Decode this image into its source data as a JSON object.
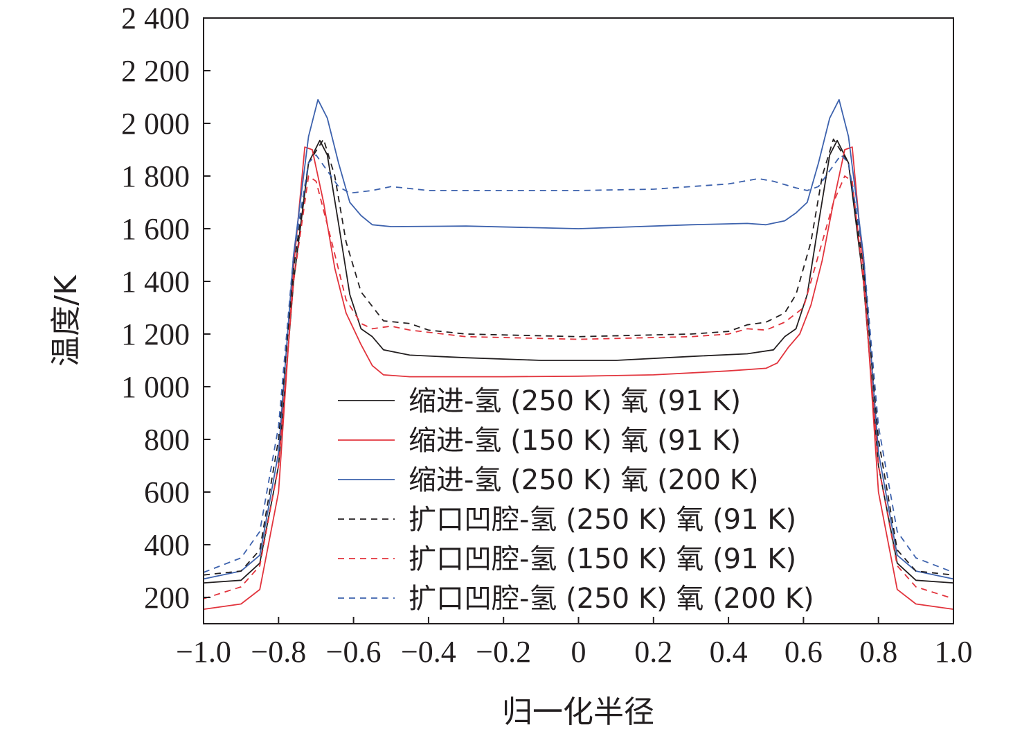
{
  "chart_data": {
    "type": "line",
    "xlabel": "归一化半径",
    "ylabel": "温度/K",
    "xlim": [
      -1.0,
      1.0
    ],
    "ylim": [
      100,
      2400
    ],
    "xticks": [
      -1.0,
      -0.8,
      -0.6,
      -0.4,
      -0.2,
      0,
      0.2,
      0.4,
      0.6,
      0.8,
      1.0
    ],
    "xtick_labels": [
      "−1.0",
      "−0.8",
      "−0.6",
      "−0.4",
      "−0.2",
      "0",
      "0.2",
      "0.4",
      "0.6",
      "0.8",
      "1.0"
    ],
    "yticks": [
      200,
      400,
      600,
      800,
      1000,
      1200,
      1400,
      1600,
      1800,
      2000,
      2200,
      2400
    ],
    "ytick_labels": [
      "200",
      "400",
      "600",
      "800",
      "1 000",
      "1 200",
      "1 400",
      "1 600",
      "1 800",
      "2 000",
      "2 200",
      "2 400"
    ],
    "grid": false,
    "legend_position": "lower-center",
    "series": [
      {
        "name": "缩进-氢 (250 K) 氧 (91 K)",
        "color": "#231f20",
        "dash": "solid",
        "points": [
          [
            -1.0,
            255
          ],
          [
            -0.9,
            265
          ],
          [
            -0.85,
            330
          ],
          [
            -0.8,
            700
          ],
          [
            -0.76,
            1400
          ],
          [
            -0.72,
            1850
          ],
          [
            -0.69,
            1935
          ],
          [
            -0.67,
            1880
          ],
          [
            -0.64,
            1620
          ],
          [
            -0.61,
            1350
          ],
          [
            -0.58,
            1220
          ],
          [
            -0.55,
            1190
          ],
          [
            -0.52,
            1140
          ],
          [
            -0.45,
            1120
          ],
          [
            -0.3,
            1110
          ],
          [
            -0.1,
            1100
          ],
          [
            0.1,
            1100
          ],
          [
            0.3,
            1115
          ],
          [
            0.45,
            1125
          ],
          [
            0.52,
            1140
          ],
          [
            0.55,
            1190
          ],
          [
            0.58,
            1220
          ],
          [
            0.61,
            1350
          ],
          [
            0.64,
            1620
          ],
          [
            0.67,
            1880
          ],
          [
            0.69,
            1935
          ],
          [
            0.72,
            1850
          ],
          [
            0.76,
            1400
          ],
          [
            0.8,
            700
          ],
          [
            0.85,
            330
          ],
          [
            0.9,
            265
          ],
          [
            1.0,
            255
          ]
        ]
      },
      {
        "name": "缩进-氢 (150 K) 氧 (91 K)",
        "color": "#e2343d",
        "dash": "solid",
        "points": [
          [
            -1.0,
            155
          ],
          [
            -0.9,
            175
          ],
          [
            -0.85,
            230
          ],
          [
            -0.8,
            600
          ],
          [
            -0.76,
            1450
          ],
          [
            -0.73,
            1910
          ],
          [
            -0.71,
            1900
          ],
          [
            -0.68,
            1700
          ],
          [
            -0.65,
            1450
          ],
          [
            -0.62,
            1280
          ],
          [
            -0.58,
            1160
          ],
          [
            -0.55,
            1080
          ],
          [
            -0.52,
            1045
          ],
          [
            -0.45,
            1038
          ],
          [
            -0.2,
            1038
          ],
          [
            0,
            1040
          ],
          [
            0.2,
            1045
          ],
          [
            0.4,
            1060
          ],
          [
            0.5,
            1070
          ],
          [
            0.53,
            1090
          ],
          [
            0.56,
            1150
          ],
          [
            0.59,
            1200
          ],
          [
            0.62,
            1310
          ],
          [
            0.65,
            1480
          ],
          [
            0.68,
            1700
          ],
          [
            0.71,
            1900
          ],
          [
            0.73,
            1910
          ],
          [
            0.76,
            1450
          ],
          [
            0.8,
            600
          ],
          [
            0.85,
            230
          ],
          [
            0.9,
            175
          ],
          [
            1.0,
            155
          ]
        ]
      },
      {
        "name": "缩进-氢 (250 K) 氧 (200 K)",
        "color": "#3d62ad",
        "dash": "solid",
        "points": [
          [
            -1.0,
            270
          ],
          [
            -0.9,
            300
          ],
          [
            -0.85,
            360
          ],
          [
            -0.8,
            750
          ],
          [
            -0.76,
            1500
          ],
          [
            -0.72,
            1950
          ],
          [
            -0.695,
            2090
          ],
          [
            -0.67,
            2020
          ],
          [
            -0.64,
            1850
          ],
          [
            -0.61,
            1700
          ],
          [
            -0.58,
            1650
          ],
          [
            -0.55,
            1615
          ],
          [
            -0.5,
            1608
          ],
          [
            -0.3,
            1610
          ],
          [
            0,
            1600
          ],
          [
            0.3,
            1615
          ],
          [
            0.45,
            1620
          ],
          [
            0.5,
            1615
          ],
          [
            0.55,
            1630
          ],
          [
            0.58,
            1660
          ],
          [
            0.61,
            1700
          ],
          [
            0.64,
            1850
          ],
          [
            0.67,
            2020
          ],
          [
            0.695,
            2090
          ],
          [
            0.72,
            1950
          ],
          [
            0.76,
            1500
          ],
          [
            0.8,
            750
          ],
          [
            0.85,
            360
          ],
          [
            0.9,
            300
          ],
          [
            1.0,
            270
          ]
        ]
      },
      {
        "name": "扩口凹腔-氢 (250 K) 氧 (91 K)",
        "color": "#231f20",
        "dash": "dashed",
        "points": [
          [
            -1.0,
            285
          ],
          [
            -0.9,
            300
          ],
          [
            -0.85,
            380
          ],
          [
            -0.8,
            800
          ],
          [
            -0.76,
            1450
          ],
          [
            -0.72,
            1850
          ],
          [
            -0.68,
            1940
          ],
          [
            -0.65,
            1800
          ],
          [
            -0.62,
            1550
          ],
          [
            -0.58,
            1360
          ],
          [
            -0.52,
            1250
          ],
          [
            -0.45,
            1240
          ],
          [
            -0.4,
            1215
          ],
          [
            -0.3,
            1200
          ],
          [
            0,
            1190
          ],
          [
            0.3,
            1200
          ],
          [
            0.4,
            1210
          ],
          [
            0.45,
            1235
          ],
          [
            0.5,
            1245
          ],
          [
            0.55,
            1280
          ],
          [
            0.58,
            1350
          ],
          [
            0.62,
            1550
          ],
          [
            0.65,
            1800
          ],
          [
            0.68,
            1940
          ],
          [
            0.72,
            1850
          ],
          [
            0.76,
            1450
          ],
          [
            0.8,
            800
          ],
          [
            0.85,
            380
          ],
          [
            0.9,
            300
          ],
          [
            1.0,
            285
          ]
        ]
      },
      {
        "name": "扩口凹腔-氢 (150 K) 氧 (91 K)",
        "color": "#e2343d",
        "dash": "dashed",
        "points": [
          [
            -1.0,
            195
          ],
          [
            -0.9,
            240
          ],
          [
            -0.85,
            320
          ],
          [
            -0.8,
            700
          ],
          [
            -0.76,
            1400
          ],
          [
            -0.72,
            1800
          ],
          [
            -0.7,
            1780
          ],
          [
            -0.66,
            1560
          ],
          [
            -0.62,
            1330
          ],
          [
            -0.58,
            1240
          ],
          [
            -0.55,
            1220
          ],
          [
            -0.5,
            1230
          ],
          [
            -0.45,
            1215
          ],
          [
            -0.3,
            1190
          ],
          [
            0,
            1180
          ],
          [
            0.3,
            1190
          ],
          [
            0.4,
            1200
          ],
          [
            0.45,
            1220
          ],
          [
            0.5,
            1215
          ],
          [
            0.55,
            1245
          ],
          [
            0.6,
            1300
          ],
          [
            0.64,
            1500
          ],
          [
            0.68,
            1700
          ],
          [
            0.71,
            1800
          ],
          [
            0.73,
            1780
          ],
          [
            0.76,
            1400
          ],
          [
            0.8,
            700
          ],
          [
            0.85,
            320
          ],
          [
            0.9,
            240
          ],
          [
            1.0,
            195
          ]
        ]
      },
      {
        "name": "扩口凹腔-氢 (250 K) 氧 (200 K)",
        "color": "#3d62ad",
        "dash": "dashed",
        "points": [
          [
            -1.0,
            295
          ],
          [
            -0.9,
            350
          ],
          [
            -0.85,
            450
          ],
          [
            -0.8,
            850
          ],
          [
            -0.76,
            1500
          ],
          [
            -0.72,
            1850
          ],
          [
            -0.7,
            1880
          ],
          [
            -0.67,
            1820
          ],
          [
            -0.64,
            1760
          ],
          [
            -0.61,
            1735
          ],
          [
            -0.55,
            1745
          ],
          [
            -0.5,
            1760
          ],
          [
            -0.4,
            1745
          ],
          [
            -0.2,
            1745
          ],
          [
            0,
            1745
          ],
          [
            0.2,
            1750
          ],
          [
            0.4,
            1770
          ],
          [
            0.48,
            1790
          ],
          [
            0.52,
            1780
          ],
          [
            0.58,
            1755
          ],
          [
            0.61,
            1745
          ],
          [
            0.64,
            1760
          ],
          [
            0.67,
            1820
          ],
          [
            0.7,
            1880
          ],
          [
            0.72,
            1850
          ],
          [
            0.76,
            1500
          ],
          [
            0.8,
            850
          ],
          [
            0.85,
            450
          ],
          [
            0.9,
            350
          ],
          [
            1.0,
            295
          ]
        ]
      }
    ]
  }
}
